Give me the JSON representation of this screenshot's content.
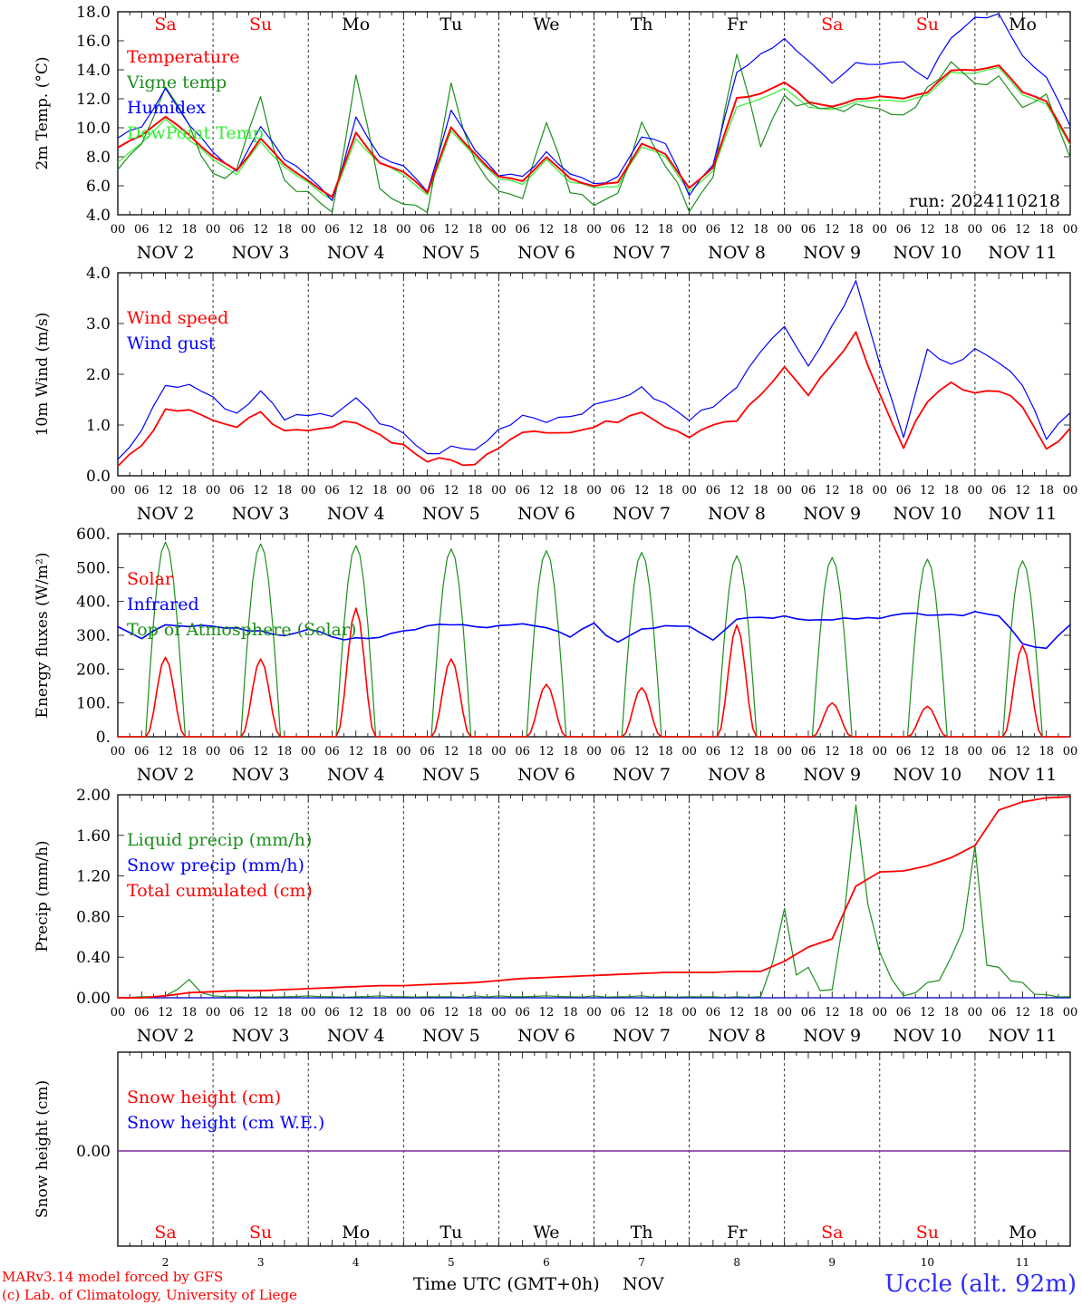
{
  "colors": {
    "red": "#ff0000",
    "blue": "#0000ff",
    "green": "#1b8f1b",
    "lightgreen": "#33ee33",
    "purple": "#7a2a9a",
    "label_blue": "#2b2bff"
  },
  "days": [
    {
      "label": "Sa",
      "weekend": true,
      "date": "NOV 2",
      "day": "2"
    },
    {
      "label": "Su",
      "weekend": true,
      "date": "NOV 3",
      "day": "3"
    },
    {
      "label": "Mo",
      "weekend": false,
      "date": "NOV 4",
      "day": "4"
    },
    {
      "label": "Tu",
      "weekend": false,
      "date": "NOV 5",
      "day": "5"
    },
    {
      "label": "We",
      "weekend": false,
      "date": "NOV 6",
      "day": "6"
    },
    {
      "label": "Th",
      "weekend": false,
      "date": "NOV 7",
      "day": "7"
    },
    {
      "label": "Fr",
      "weekend": false,
      "date": "NOV 8",
      "day": "8"
    },
    {
      "label": "Sa",
      "weekend": true,
      "date": "NOV 9",
      "day": "9"
    },
    {
      "label": "Su",
      "weekend": true,
      "date": "NOV 10",
      "day": "10"
    },
    {
      "label": "Mo",
      "weekend": false,
      "date": "NOV 11",
      "day": "11"
    }
  ],
  "hour_labels": [
    "00",
    "06",
    "12",
    "18"
  ],
  "final_hour_label": "00",
  "footer": {
    "model_line": "MARv3.14 model forced by GFS",
    "credit_line": "(c) Lab. of Climatology, University of Liege",
    "x_axis_label": "Time UTC (GMT+0h)",
    "month": "NOV",
    "station": "Uccle (alt. 92m)"
  },
  "chart_data": [
    {
      "type": "line",
      "ylabel": "2m Temp. (°C)",
      "ylim": [
        4,
        18
      ],
      "yticks": [
        "4.0",
        "6.0",
        "8.0",
        "10.0",
        "12.0",
        "14.0",
        "16.0",
        "18.0"
      ],
      "annotation": "run: 2024110218",
      "x_hours_from_nov2_00": [
        0,
        6,
        12,
        18,
        24,
        30,
        36,
        42,
        48,
        54,
        60,
        66,
        72,
        78,
        84,
        90,
        96,
        102,
        108,
        114,
        120,
        126,
        132,
        138,
        144,
        150,
        156,
        162,
        168,
        174,
        180,
        186,
        192,
        198,
        204,
        210,
        216,
        222,
        228,
        234,
        240
      ],
      "series": [
        {
          "name": "Temperature",
          "color": "red",
          "values": [
            8.7,
            9.5,
            10.8,
            9.5,
            8.0,
            7.0,
            9.2,
            7.5,
            6.4,
            5.2,
            9.6,
            7.6,
            7.0,
            5.5,
            10.0,
            8.2,
            6.6,
            6.3,
            8.0,
            6.5,
            6.0,
            6.2,
            8.9,
            8.2,
            5.9,
            7.2,
            12.0,
            12.3,
            13.2,
            11.8,
            11.5,
            12.0,
            12.1,
            12.0,
            12.5,
            14.0,
            14.0,
            14.3,
            12.5,
            11.8,
            9.0
          ]
        },
        {
          "name": "Vigne temp",
          "color": "green",
          "values": [
            7.5,
            9.0,
            12.9,
            10.0,
            6.5,
            7.3,
            12.2,
            6.0,
            5.3,
            4.2,
            13.4,
            6.0,
            5.0,
            4.0,
            12.8,
            7.5,
            6.0,
            5.5,
            10.1,
            5.8,
            5.0,
            5.5,
            10.5,
            7.5,
            4.5,
            7.0,
            15.4,
            9.0,
            12.3,
            11.5,
            11.2,
            11.3,
            11.2,
            11.0,
            12.5,
            14.9,
            13.2,
            13.5,
            11.5,
            12.0,
            8.0
          ]
        },
        {
          "name": "Humidex",
          "color": "blue",
          "values": [
            9.4,
            10.0,
            12.6,
            10.2,
            8.2,
            7.0,
            10.0,
            7.8,
            6.6,
            5.0,
            10.6,
            8.0,
            7.3,
            5.6,
            11.1,
            8.6,
            6.7,
            6.6,
            8.3,
            6.9,
            6.2,
            6.5,
            9.5,
            9.0,
            5.4,
            7.5,
            13.8,
            15.0,
            16.2,
            14.5,
            13.2,
            14.5,
            14.4,
            14.6,
            13.5,
            16.2,
            17.5,
            17.9,
            15.0,
            13.6,
            10.0
          ]
        },
        {
          "name": "DewPoint Temp",
          "color": "lightgreen",
          "values": [
            7.6,
            9.0,
            10.6,
            9.2,
            7.8,
            6.8,
            9.0,
            7.3,
            6.2,
            5.0,
            9.3,
            7.5,
            6.8,
            5.3,
            9.8,
            8.0,
            6.5,
            6.1,
            7.8,
            6.3,
            5.9,
            6.0,
            8.7,
            8.0,
            5.6,
            7.0,
            11.5,
            12.0,
            12.8,
            11.4,
            11.2,
            11.8,
            11.9,
            11.8,
            12.3,
            13.8,
            13.8,
            14.1,
            12.2,
            11.6,
            8.8
          ]
        }
      ]
    },
    {
      "type": "line",
      "ylabel": "10m Wind (m/s)",
      "ylim": [
        0,
        4
      ],
      "yticks": [
        "0.0",
        "1.0",
        "2.0",
        "3.0",
        "4.0"
      ],
      "x_hours_from_nov2_00": [
        0,
        6,
        12,
        18,
        24,
        30,
        36,
        42,
        48,
        54,
        60,
        66,
        72,
        78,
        84,
        90,
        96,
        102,
        108,
        114,
        120,
        126,
        132,
        138,
        144,
        150,
        156,
        162,
        168,
        174,
        180,
        186,
        192,
        198,
        204,
        210,
        216,
        222,
        228,
        234,
        240
      ],
      "series": [
        {
          "name": "Wind speed",
          "color": "red",
          "values": [
            0.25,
            0.6,
            1.3,
            1.35,
            1.1,
            0.9,
            1.3,
            0.85,
            0.85,
            0.95,
            1.1,
            0.8,
            0.6,
            0.3,
            0.3,
            0.2,
            0.6,
            0.9,
            0.9,
            0.85,
            0.95,
            1.1,
            1.3,
            1.0,
            0.8,
            1.05,
            1.1,
            1.6,
            2.1,
            1.6,
            2.2,
            2.8,
            1.6,
            0.55,
            1.5,
            1.85,
            1.6,
            1.7,
            1.4,
            0.5,
            0.95
          ]
        },
        {
          "name": "Wind gust",
          "color": "blue",
          "values": [
            0.35,
            0.9,
            1.8,
            1.8,
            1.55,
            1.2,
            1.65,
            1.15,
            1.15,
            1.2,
            1.55,
            1.0,
            0.85,
            0.4,
            0.55,
            0.5,
            0.9,
            1.2,
            1.1,
            1.2,
            1.35,
            1.55,
            1.7,
            1.4,
            1.1,
            1.4,
            1.8,
            2.4,
            3.0,
            2.2,
            2.9,
            3.9,
            2.2,
            0.8,
            2.5,
            2.2,
            2.5,
            2.2,
            1.8,
            0.7,
            1.3
          ]
        }
      ]
    },
    {
      "type": "line",
      "ylabel": "Energy fluxes (W/m²)",
      "ylim": [
        0,
        600
      ],
      "yticks": [
        "0.",
        "100.",
        "200.",
        "300.",
        "400.",
        "500.",
        "600."
      ],
      "series": [
        {
          "name": "Solar",
          "color": "red",
          "peaks_per_day": [
            235,
            230,
            380,
            230,
            155,
            145,
            330,
            100,
            90,
            270
          ]
        },
        {
          "name": "Infrared",
          "color": "blue",
          "values_every_6h": [
            330,
            290,
            330,
            320,
            330,
            320,
            310,
            300,
            320,
            290,
            295,
            290,
            310,
            330,
            330,
            325,
            325,
            330,
            320,
            300,
            330,
            280,
            320,
            330,
            330,
            290,
            350,
            355,
            355,
            350,
            350,
            350,
            355,
            360,
            360,
            360,
            365,
            360,
            280,
            260,
            335
          ]
        },
        {
          "name": "Top of Atmosphere (Solar)",
          "color": "green",
          "peaks_per_day": [
            575,
            570,
            565,
            555,
            550,
            545,
            535,
            530,
            525,
            520
          ]
        }
      ]
    },
    {
      "type": "line",
      "ylabel": "Precip (mm/h)",
      "ylim": [
        0,
        2
      ],
      "yticks": [
        "0.00",
        "0.40",
        "0.80",
        "1.20",
        "1.60",
        "2.00"
      ],
      "x_hours_from_nov2_00": [
        0,
        6,
        12,
        18,
        24,
        30,
        36,
        42,
        48,
        54,
        60,
        66,
        72,
        78,
        84,
        90,
        96,
        102,
        108,
        114,
        120,
        126,
        132,
        138,
        144,
        150,
        156,
        162,
        168,
        174,
        180,
        186,
        192,
        198,
        204,
        210,
        216,
        222,
        228,
        234,
        240
      ],
      "series": [
        {
          "name": "Liquid precip (mm/h)",
          "color": "green",
          "values": [
            0,
            0.01,
            0.02,
            0.18,
            0.02,
            0.01,
            0.01,
            0.01,
            0.02,
            0.01,
            0.01,
            0.02,
            0.01,
            0.01,
            0.01,
            0.02,
            0.02,
            0.01,
            0.02,
            0.01,
            0.02,
            0.01,
            0.02,
            0.01,
            0.01,
            0.01,
            0.01,
            0.01,
            0.88,
            0.3,
            0.08,
            1.9,
            0.45,
            0.02,
            0.15,
            0.4,
            1.5,
            0.3,
            0.15,
            0.03,
            0.01
          ]
        },
        {
          "name": "Snow precip (mm/h)",
          "color": "blue",
          "values": [
            0,
            0,
            0,
            0,
            0,
            0,
            0,
            0,
            0,
            0,
            0,
            0,
            0,
            0,
            0,
            0,
            0,
            0,
            0,
            0,
            0,
            0,
            0,
            0,
            0,
            0,
            0,
            0,
            0,
            0,
            0,
            0,
            0,
            0,
            0,
            0,
            0,
            0,
            0,
            0,
            0
          ]
        },
        {
          "name": "Total cumulated (cm)",
          "color": "red",
          "values": [
            0,
            0,
            0.02,
            0.05,
            0.06,
            0.07,
            0.07,
            0.08,
            0.09,
            0.1,
            0.11,
            0.12,
            0.12,
            0.13,
            0.14,
            0.15,
            0.17,
            0.19,
            0.2,
            0.21,
            0.22,
            0.23,
            0.24,
            0.25,
            0.25,
            0.25,
            0.26,
            0.26,
            0.36,
            0.5,
            0.58,
            1.1,
            1.24,
            1.25,
            1.3,
            1.38,
            1.5,
            1.85,
            1.93,
            1.97,
            1.98
          ]
        }
      ]
    },
    {
      "type": "line",
      "ylabel": "Snow height (cm)",
      "yticks": [
        "0.00"
      ],
      "series": [
        {
          "name": "Snow height (cm)",
          "color": "red",
          "values": [
            0,
            0
          ]
        },
        {
          "name": "Snow height (cm W.E.)",
          "color": "blue",
          "values": [
            0,
            0
          ]
        }
      ]
    }
  ]
}
